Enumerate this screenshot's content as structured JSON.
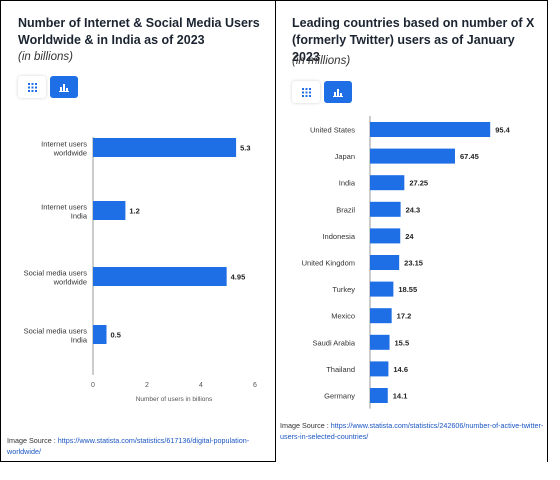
{
  "left": {
    "title": "Number of Internet & Social Media Users Worldwide & in India as of 2023",
    "subtitle": "(in billions)",
    "toggle": {
      "table_icon": "grid-icon",
      "chart_icon": "bar-chart-icon",
      "active": "chart"
    },
    "source_prefix": "Image Source : ",
    "source_link": "https://www.statista.com/statistics/617136/digital-population-worldwide/"
  },
  "right": {
    "title": "Leading countries based on number of X (formerly Twitter) users as of January 2023",
    "subtitle": "(in millions)",
    "toggle": {
      "table_icon": "grid-icon",
      "chart_icon": "bar-chart-icon",
      "active": "chart"
    },
    "source_prefix": "Image Source : ",
    "source_link": "https://www.statista.com/statistics/242606/number-of-active-twitter-users-in-selected-countries/"
  },
  "accent_color": "#1e6ee6",
  "chart_data": [
    {
      "type": "bar",
      "orientation": "horizontal",
      "categories": [
        "Internet users worldwide",
        "Internet users India",
        "Social media users worldwide",
        "Social media users India"
      ],
      "category_lines": [
        [
          "Internet users",
          "worldwide"
        ],
        [
          "Internet users",
          "India"
        ],
        [
          "Social media users",
          "worldwide"
        ],
        [
          "Social media users",
          "India"
        ]
      ],
      "values": [
        5.3,
        1.2,
        4.95,
        0.5
      ],
      "value_labels": [
        "5.3",
        "1.2",
        "4.95",
        "0.5"
      ],
      "xlabel": "Number of users in billions",
      "xticks": [
        0,
        2,
        4,
        6
      ],
      "xlim": [
        0,
        6
      ],
      "grid": false
    },
    {
      "type": "bar",
      "orientation": "horizontal",
      "categories": [
        "United States",
        "Japan",
        "India",
        "Brazil",
        "Indonesia",
        "United Kingdom",
        "Turkey",
        "Mexico",
        "Saudi Arabia",
        "Thailand",
        "Germany"
      ],
      "values": [
        95.4,
        67.45,
        27.25,
        24.3,
        24,
        23.15,
        18.55,
        17.2,
        15.5,
        14.6,
        14.1
      ],
      "value_labels": [
        "95.4",
        "67.45",
        "27.25",
        "24.3",
        "24",
        "23.15",
        "18.55",
        "17.2",
        "15.5",
        "14.6",
        "14.1"
      ],
      "xlim": [
        0,
        100
      ],
      "grid": false
    }
  ]
}
